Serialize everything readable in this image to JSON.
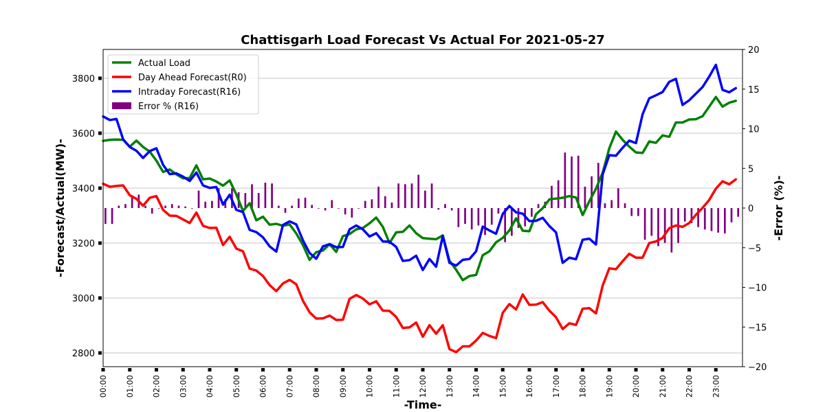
{
  "chart_data": {
    "type": "line",
    "title": "Chattisgarh Load Forecast Vs Actual For 2021-05-27",
    "xlabel": "-Time-",
    "ylabel": "-Forecast/Actual(MW)-",
    "y2label": "-Error (%)-",
    "ylim": [
      2750,
      3905
    ],
    "y2lim": [
      -20,
      20
    ],
    "y_ticks": [
      2800,
      3000,
      3200,
      3400,
      3600,
      3800
    ],
    "y2_ticks": [
      -20,
      -15,
      -10,
      -5,
      0,
      5,
      10,
      15,
      20
    ],
    "x_ticks": [
      "00:00",
      "01:00",
      "02:00",
      "03:00",
      "04:00",
      "05:00",
      "06:00",
      "07:00",
      "08:00",
      "09:00",
      "10:00",
      "11:00",
      "12:00",
      "13:00",
      "14:00",
      "15:00",
      "16:00",
      "17:00",
      "18:00",
      "19:00",
      "20:00",
      "21:00",
      "22:00",
      "23:00"
    ],
    "grid": "horizontal",
    "legend_position": "top-left",
    "interval_minutes": 15,
    "series": [
      {
        "name": "Actual Load",
        "color": "#008000",
        "values": [
          3572,
          3576,
          3577,
          3576,
          3551,
          3573,
          3550,
          3533,
          3500,
          3459,
          3468,
          3450,
          3436,
          3437,
          3483,
          3432,
          3435,
          3424,
          3409,
          3428,
          3377,
          3317,
          3345,
          3283,
          3296,
          3267,
          3270,
          3263,
          3268,
          3235,
          3193,
          3139,
          3167,
          3173,
          3196,
          3168,
          3225,
          3233,
          3250,
          3255,
          3272,
          3293,
          3259,
          3200,
          3239,
          3241,
          3264,
          3236,
          3218,
          3216,
          3214,
          3228,
          3136,
          3103,
          3065,
          3080,
          3084,
          3156,
          3170,
          3203,
          3219,
          3246,
          3290,
          3245,
          3243,
          3305,
          3327,
          3359,
          3362,
          3365,
          3371,
          3366,
          3302,
          3352,
          3398,
          3456,
          3545,
          3606,
          3576,
          3551,
          3530,
          3528,
          3570,
          3565,
          3592,
          3587,
          3639,
          3639,
          3650,
          3651,
          3662,
          3697,
          3732,
          3697,
          3711,
          3718
        ]
      },
      {
        "name": "Day Ahead Forecast(R0)",
        "color": "#ff0000",
        "values": [
          3416,
          3405,
          3408,
          3410,
          3374,
          3361,
          3336,
          3365,
          3371,
          3321,
          3300,
          3299,
          3286,
          3273,
          3311,
          3263,
          3255,
          3256,
          3193,
          3223,
          3180,
          3170,
          3107,
          3100,
          3080,
          3047,
          3025,
          3053,
          3066,
          3050,
          2990,
          2948,
          2925,
          2926,
          2936,
          2920,
          2921,
          2997,
          3011,
          2998,
          2977,
          2988,
          2954,
          2953,
          2931,
          2891,
          2893,
          2911,
          2859,
          2901,
          2870,
          2901,
          2814,
          2803,
          2824,
          2824,
          2845,
          2873,
          2862,
          2854,
          2946,
          2978,
          2958,
          3013,
          2975,
          2976,
          2985,
          2954,
          2930,
          2887,
          2908,
          2902,
          2961,
          2963,
          2944,
          3045,
          3108,
          3105,
          3134,
          3161,
          3147,
          3147,
          3200,
          3206,
          3219,
          3254,
          3264,
          3259,
          3273,
          3303,
          3328,
          3357,
          3398,
          3425,
          3414,
          3432
        ]
      },
      {
        "name": "Intraday Forecast(R16)",
        "color": "#0000ff",
        "values": [
          3661,
          3648,
          3652,
          3578,
          3550,
          3536,
          3510,
          3535,
          3545,
          3485,
          3451,
          3454,
          3442,
          3426,
          3457,
          3410,
          3401,
          3404,
          3340,
          3376,
          3321,
          3313,
          3248,
          3240,
          3221,
          3188,
          3169,
          3266,
          3279,
          3268,
          3210,
          3164,
          3143,
          3188,
          3196,
          3185,
          3186,
          3250,
          3264,
          3250,
          3224,
          3236,
          3206,
          3205,
          3186,
          3135,
          3138,
          3154,
          3102,
          3142,
          3114,
          3226,
          3128,
          3118,
          3139,
          3142,
          3170,
          3260,
          3246,
          3234,
          3306,
          3335,
          3312,
          3307,
          3280,
          3281,
          3292,
          3262,
          3239,
          3128,
          3147,
          3141,
          3212,
          3216,
          3195,
          3450,
          3520,
          3518,
          3547,
          3573,
          3564,
          3669,
          3727,
          3738,
          3750,
          3787,
          3798,
          3703,
          3720,
          3744,
          3768,
          3806,
          3849,
          3758,
          3749,
          3764
        ]
      },
      {
        "name": "Error % (R16)",
        "color": "#800080",
        "type": "bar",
        "axis": "y2",
        "values": [
          -2,
          -2,
          0.3,
          0.5,
          1.6,
          1.7,
          0.3,
          -0.7,
          0,
          0.3,
          0.5,
          0.3,
          0.2,
          0,
          2.2,
          0.8,
          0.9,
          2.5,
          1.1,
          2.5,
          2,
          1.9,
          3,
          1.9,
          3.2,
          3.1,
          0.3,
          -0.6,
          0.3,
          1.2,
          1.3,
          0.4,
          0,
          -0.3,
          1,
          0,
          -0.8,
          -1.2,
          0,
          0.9,
          1.1,
          2.7,
          1.5,
          0.7,
          3.1,
          3,
          3.1,
          4.2,
          2.2,
          3.1,
          -0.2,
          0.5,
          -0.3,
          -2.4,
          -2,
          -2.7,
          -2.2,
          -3.4,
          -2.1,
          -0.7,
          -4.3,
          -3.5,
          -2.5,
          -2.3,
          -1.1,
          0.5,
          0.8,
          2.8,
          3.5,
          7,
          6.5,
          6.6,
          2.7,
          4,
          5.7,
          0.6,
          1,
          2.5,
          0.6,
          -1,
          -1,
          -4,
          -3.5,
          -4.8,
          -4.4,
          -5.6,
          -4.4,
          -1.7,
          -1.9,
          -2.4,
          -2.7,
          -2.9,
          -3.1,
          -3.2,
          -1.8,
          -1.1
        ]
      }
    ]
  }
}
